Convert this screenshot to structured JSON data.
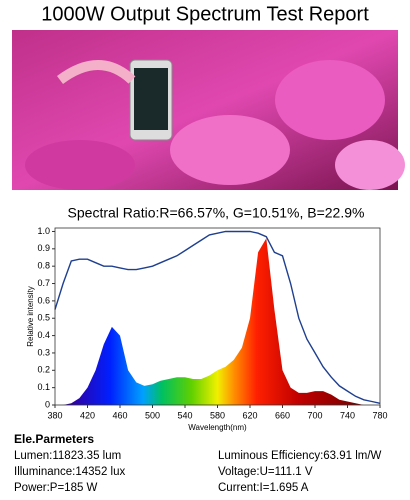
{
  "title": "1000W Output Spectrum Test Report",
  "ratio": "Spectral Ratio:R=66.57%, G=10.51%, B=22.9%",
  "chart_data": {
    "type": "spectrum",
    "xlabel": "Wavelength(nm)",
    "ylabel": "Relative intensity",
    "x": [
      380,
      390,
      400,
      410,
      420,
      430,
      440,
      450,
      460,
      470,
      480,
      490,
      500,
      510,
      520,
      530,
      540,
      550,
      560,
      570,
      580,
      590,
      600,
      610,
      620,
      630,
      640,
      650,
      660,
      670,
      680,
      690,
      700,
      710,
      720,
      730,
      740,
      750,
      760,
      770,
      780
    ],
    "series": [
      {
        "values": [
          0,
          0,
          0.01,
          0.04,
          0.1,
          0.2,
          0.35,
          0.45,
          0.4,
          0.2,
          0.13,
          0.11,
          0.12,
          0.14,
          0.15,
          0.16,
          0.16,
          0.15,
          0.15,
          0.17,
          0.2,
          0.22,
          0.26,
          0.33,
          0.5,
          0.88,
          0.96,
          0.55,
          0.2,
          0.1,
          0.07,
          0.07,
          0.08,
          0.08,
          0.06,
          0.03,
          0.02,
          0.01,
          0,
          0,
          0
        ]
      },
      {
        "color": "#1f3f8f",
        "values": [
          0.55,
          0.7,
          0.83,
          0.84,
          0.84,
          0.82,
          0.8,
          0.8,
          0.79,
          0.78,
          0.78,
          0.79,
          0.8,
          0.82,
          0.84,
          0.86,
          0.89,
          0.92,
          0.95,
          0.98,
          0.99,
          1,
          1,
          1,
          1,
          0.99,
          0.97,
          0.88,
          0.86,
          0.7,
          0.5,
          0.38,
          0.3,
          0.22,
          0.16,
          0.11,
          0.08,
          0.05,
          0.03,
          0.02,
          0.01
        ]
      }
    ],
    "xlim": [
      380,
      780
    ],
    "ylim": [
      0,
      1.02
    ],
    "xticks": [
      380,
      420,
      460,
      500,
      540,
      580,
      620,
      660,
      700,
      740,
      780
    ],
    "yticks": [
      0,
      0.1,
      0.2,
      0.3,
      0.4,
      0.5,
      0.6,
      0.7,
      0.8,
      0.9,
      {
        "value": 1,
        "label": "1.0"
      }
    ]
  },
  "parameters": {
    "title": "Ele.Parmeters",
    "items": [
      "Lumen:11823.35 lum",
      "Luminous Efficiency:63.91 lm/W",
      "Illuminance:14352 lux",
      "Voltage:U=111.1 V",
      "Power:P=185 W",
      "Current:I=1.695 A"
    ]
  }
}
